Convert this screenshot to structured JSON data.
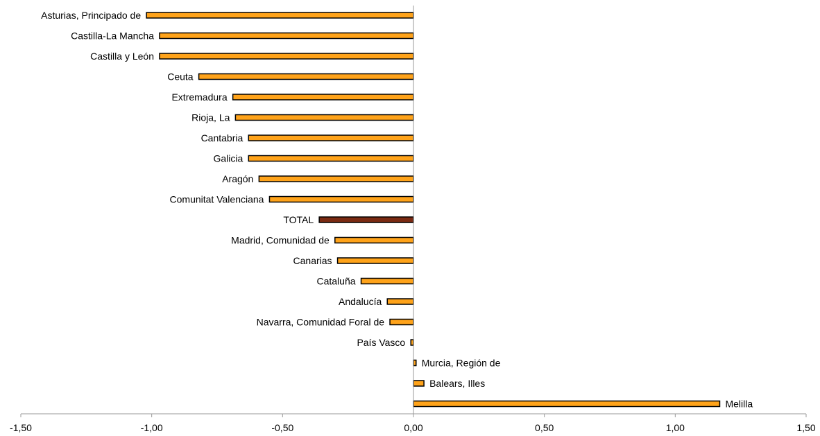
{
  "chart_data": {
    "type": "bar",
    "orientation": "horizontal",
    "categories": [
      "Asturias, Principado de",
      "Castilla-La Mancha",
      "Castilla y León",
      "Ceuta",
      "Extremadura",
      "Rioja, La",
      "Cantabria",
      "Galicia",
      "Aragón",
      "Comunitat Valenciana",
      "TOTAL",
      "Madrid, Comunidad de",
      "Canarias",
      "Cataluña",
      "Andalucía",
      "Navarra, Comunidad Foral de",
      "País Vasco",
      "Murcia, Región de",
      "Balears, Illes",
      "Melilla"
    ],
    "values": [
      -1.02,
      -0.97,
      -0.97,
      -0.82,
      -0.69,
      -0.68,
      -0.63,
      -0.63,
      -0.59,
      -0.55,
      -0.36,
      -0.3,
      -0.29,
      -0.2,
      -0.1,
      -0.09,
      -0.01,
      0.01,
      0.04,
      1.17
    ],
    "highlight_category": "TOTAL",
    "xlim": [
      -1.5,
      1.5
    ],
    "x_ticks": [
      "-1,50",
      "-1,00",
      "-0,50",
      "0,00",
      "0,50",
      "1,00",
      "1,50"
    ],
    "x_tick_values": [
      -1.5,
      -1.0,
      -0.5,
      0.0,
      0.5,
      1.0,
      1.5
    ],
    "grid": false,
    "legend": "none",
    "colors": {
      "bar": "#FFA31A",
      "highlight": "#7A2A12",
      "outline": "#000000",
      "axis": "#999999"
    }
  }
}
